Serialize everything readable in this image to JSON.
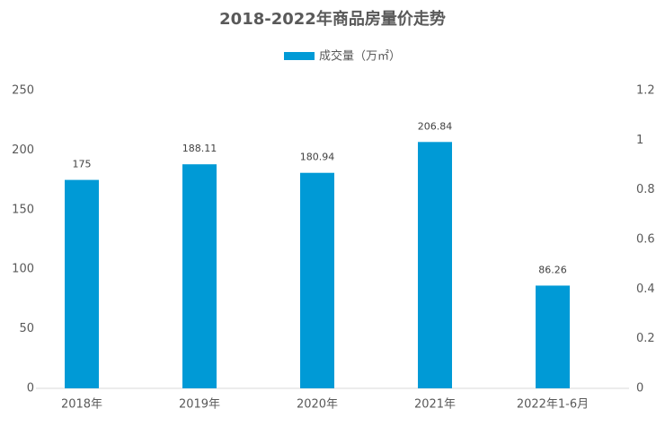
{
  "chart_data": {
    "type": "bar",
    "title": "2018-2022年商品房量价走势",
    "categories": [
      "2018年",
      "2019年",
      "2020年",
      "2021年",
      "2022年1-6月"
    ],
    "series": [
      {
        "name": "成交量（万㎡）",
        "color": "#009ad6",
        "values": [
          175,
          188.11,
          180.94,
          206.84,
          86.26
        ]
      }
    ],
    "ylim": [
      0,
      250
    ],
    "yticks": [
      0,
      50,
      100,
      150,
      200,
      250
    ],
    "y2lim": [
      0,
      1.2
    ],
    "y2ticks": [
      0,
      0.2,
      0.4,
      0.6,
      0.8,
      1,
      1.2
    ],
    "legend": "top",
    "grid": false
  }
}
